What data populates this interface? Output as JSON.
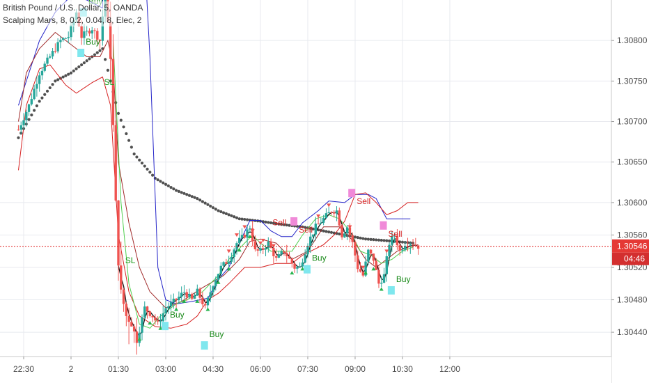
{
  "legend": {
    "symbol": "British Pound / U.S. Dollar, 5, OANDA",
    "indicator": "Scalping Mars, 8, 0.2, 0.04, 8, Elec, 2"
  },
  "colors": {
    "grid": "#e8eaef",
    "up": "#26a69a",
    "down": "#ef5350",
    "wick": "#444444",
    "sar": "#505050",
    "blue": "#2323c8",
    "red": "#d62020",
    "darkred": "#a02a2a",
    "green": "#4fcf4f",
    "black": "#111111",
    "priceLine": "#e02020",
    "tagBg": "#e53935",
    "timerBg": "#d32f2f",
    "sell": "#d62020",
    "buy": "#1a8a1a",
    "sl": "#1a9a1a",
    "cyanBox": "#7fe7ee",
    "pinkBox": "#f08ad8"
  },
  "price_tag": "1.30546",
  "timer_tag": "04:46",
  "chart_data": {
    "type": "candlestick",
    "title": "British Pound / U.S. Dollar, 5, OANDA",
    "ylim": [
      1.3041,
      1.3085
    ],
    "ytick_values": [
      1.3044,
      1.3048,
      1.3052,
      1.3056,
      1.306,
      1.3065,
      1.307,
      1.3075,
      1.308
    ],
    "ytick_labels": [
      "1.30440",
      "1.30480",
      "1.30520",
      "1.30560",
      "1.30600",
      "1.30650",
      "1.30700",
      "1.30750",
      "1.30800"
    ],
    "xtick_labels": [
      "22:30",
      "2",
      "01:30",
      "03:00",
      "04:30",
      "06:00",
      "07:30",
      "09:00",
      "10:30",
      "12:00"
    ],
    "last_price": 1.30546,
    "hlines": [
      1.30546
    ],
    "series": [
      {
        "name": "Price",
        "style": "candles"
      },
      {
        "name": "Upper band",
        "color": "blue"
      },
      {
        "name": "Lower band",
        "color": "red"
      },
      {
        "name": "Basis",
        "color": "darkred"
      },
      {
        "name": "Fast MA",
        "color": "green"
      },
      {
        "name": "Slow MA",
        "color": "black"
      },
      {
        "name": "SAR",
        "color": "sar"
      }
    ],
    "annotations": [
      {
        "text": "Buy",
        "time": "00:20",
        "price": 1.30795,
        "kind": "buy",
        "box": true
      },
      {
        "text": "Buy",
        "time": "00:25",
        "price": 1.30845,
        "kind": "buy",
        "box": true
      },
      {
        "text": "SL",
        "time": "00:55",
        "price": 1.30745,
        "kind": "sl"
      },
      {
        "text": "SL",
        "time": "01:35",
        "price": 1.30525,
        "kind": "sl"
      },
      {
        "text": "Buy",
        "time": "03:00",
        "price": 1.30458,
        "kind": "buy",
        "box": true
      },
      {
        "text": "Buy",
        "time": "04:15",
        "price": 1.30434,
        "kind": "buy",
        "box": true
      },
      {
        "text": "Sell",
        "time": "06:15",
        "price": 1.30572,
        "kind": "sell"
      },
      {
        "text": "Sell",
        "time": "07:05",
        "price": 1.30563,
        "kind": "sell",
        "box": true
      },
      {
        "text": "Buy",
        "time": "07:30",
        "price": 1.30528,
        "kind": "buy",
        "box": true
      },
      {
        "text": "Sell",
        "time": "08:55",
        "price": 1.30598,
        "kind": "sell",
        "box": true
      },
      {
        "text": "Sell",
        "time": "09:55",
        "price": 1.30558,
        "kind": "sell",
        "box": true
      },
      {
        "text": "Buy",
        "time": "10:10",
        "price": 1.30502,
        "kind": "buy",
        "box": true
      }
    ]
  }
}
